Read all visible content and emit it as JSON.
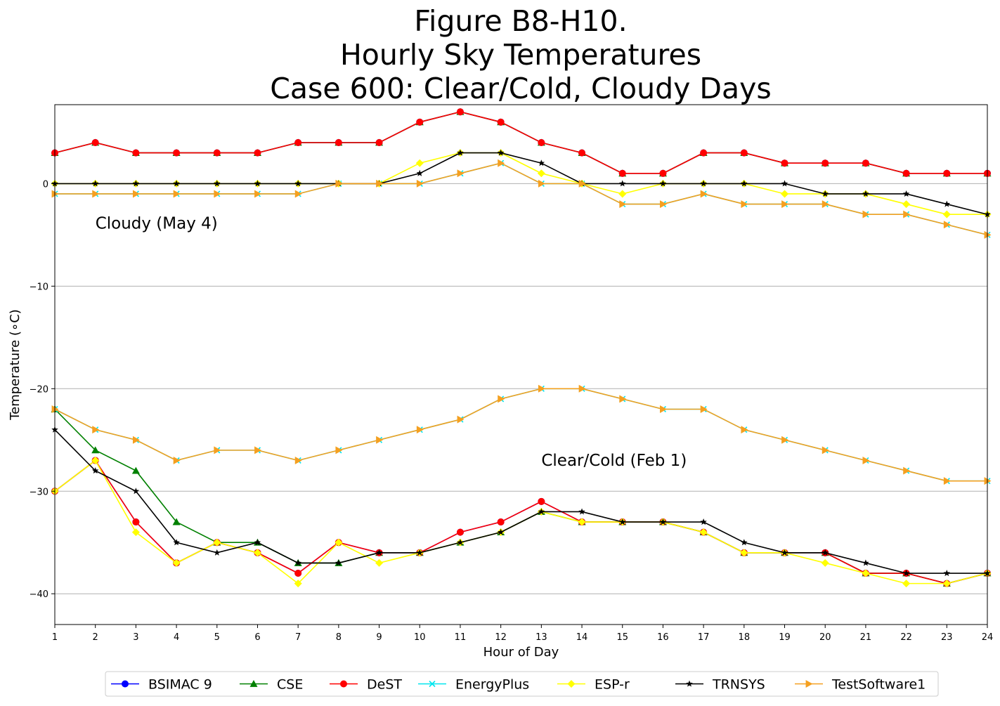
{
  "chart_data": {
    "type": "line",
    "title_lines": [
      "Figure B8-H10.",
      "Hourly Sky Temperatures",
      "Case 600: Clear/Cold, Cloudy Days"
    ],
    "xlabel": "Hour of Day",
    "ylabel": "Temperature (∘C)",
    "xlim": [
      1,
      24
    ],
    "ylim": [
      -43,
      7.7
    ],
    "x_ticks": [
      1,
      2,
      3,
      4,
      5,
      6,
      7,
      8,
      9,
      10,
      11,
      12,
      13,
      14,
      15,
      16,
      17,
      18,
      19,
      20,
      21,
      22,
      23,
      24
    ],
    "y_ticks": [
      0,
      -10,
      -20,
      -30,
      -40
    ],
    "y_tick_labels": [
      "0",
      "−10",
      "−20",
      "−30",
      "−40"
    ],
    "grid": "horizontal",
    "legend_position": "bottom-center",
    "annotations": [
      {
        "text": "Cloudy (May 4)",
        "x": 2,
        "y": -4.4
      },
      {
        "text": "Clear/Cold (Feb 1)",
        "x": 13,
        "y": -27.5
      }
    ],
    "x": [
      1,
      2,
      3,
      4,
      5,
      6,
      7,
      8,
      9,
      10,
      11,
      12,
      13,
      14,
      15,
      16,
      17,
      18,
      19,
      20,
      21,
      22,
      23,
      24
    ],
    "series": [
      {
        "name": "BSIMAC 9",
        "color": "#0000ff",
        "marker": "circle",
        "cloudy": [
          3,
          4,
          3,
          3,
          3,
          3,
          4,
          4,
          4,
          6,
          7,
          6,
          4,
          3,
          1,
          1,
          3,
          3,
          2,
          2,
          2,
          1,
          1,
          1
        ],
        "clear": [
          -30,
          -27,
          -33,
          -37,
          -35,
          -36,
          -38,
          -35,
          -36,
          -36,
          -34,
          -33,
          -31,
          -33,
          -33,
          -33,
          -34,
          -36,
          -36,
          -36,
          -38,
          -38,
          -39,
          -38
        ]
      },
      {
        "name": "CSE",
        "color": "#008000",
        "marker": "triangle-up",
        "cloudy": [
          3,
          4,
          3,
          3,
          3,
          3,
          4,
          4,
          4,
          6,
          7,
          6,
          4,
          3,
          1,
          1,
          3,
          3,
          2,
          2,
          2,
          1,
          1,
          1
        ],
        "clear": [
          -22,
          -26,
          -28,
          -33,
          -35,
          -35,
          -37,
          -37,
          -36,
          -36,
          -35,
          -34,
          -32,
          -33,
          -33,
          -33,
          -34,
          -36,
          -36,
          -36,
          -38,
          -38,
          -39,
          -38
        ]
      },
      {
        "name": "DeST",
        "color": "#ff0000",
        "marker": "circle",
        "cloudy": [
          3,
          4,
          3,
          3,
          3,
          3,
          4,
          4,
          4,
          6,
          7,
          6,
          4,
          3,
          1,
          1,
          3,
          3,
          2,
          2,
          2,
          1,
          1,
          1
        ],
        "clear": [
          -30,
          -27,
          -33,
          -37,
          -35,
          -36,
          -38,
          -35,
          -36,
          -36,
          -34,
          -33,
          -31,
          -33,
          -33,
          -33,
          -34,
          -36,
          -36,
          -36,
          -38,
          -38,
          -39,
          -38
        ]
      },
      {
        "name": "EnergyPlus",
        "color": "#00e5ee",
        "marker": "x",
        "cloudy": [
          -1,
          -1,
          -1,
          -1,
          -1,
          -1,
          -1,
          0,
          0,
          0,
          1,
          2,
          0,
          0,
          -2,
          -2,
          -1,
          -2,
          -2,
          -2,
          -3,
          -3,
          -4,
          -5
        ],
        "clear": [
          -22,
          -24,
          -25,
          -27,
          -26,
          -26,
          -27,
          -26,
          -25,
          -24,
          -23,
          -21,
          -20,
          -20,
          -21,
          -22,
          -22,
          -24,
          -25,
          -26,
          -27,
          -28,
          -29,
          -29
        ]
      },
      {
        "name": "ESP-r",
        "color": "#ffff00",
        "marker": "diamond",
        "cloudy": [
          0,
          0,
          0,
          0,
          0,
          0,
          0,
          0,
          0,
          2,
          3,
          3,
          1,
          0,
          -1,
          0,
          0,
          0,
          -1,
          -1,
          -1,
          -2,
          -3,
          -3
        ],
        "clear": [
          -30,
          -27,
          -34,
          -37,
          -35,
          -36,
          -39,
          -35,
          -37,
          -36,
          -35,
          -34,
          -32,
          -33,
          -33,
          -33,
          -34,
          -36,
          -36,
          -37,
          -38,
          -39,
          -39,
          -38
        ]
      },
      {
        "name": "TRNSYS",
        "color": "#000000",
        "marker": "star",
        "cloudy": [
          0,
          0,
          0,
          0,
          0,
          0,
          0,
          0,
          0,
          1,
          3,
          3,
          2,
          0,
          0,
          0,
          0,
          0,
          0,
          -1,
          -1,
          -1,
          -2,
          -3
        ],
        "clear": [
          -24,
          -28,
          -30,
          -35,
          -36,
          -35,
          -37,
          -37,
          -36,
          -36,
          -35,
          -34,
          -32,
          -32,
          -33,
          -33,
          -33,
          -35,
          -36,
          -36,
          -37,
          -38,
          -38,
          -38
        ]
      },
      {
        "name": "TestSoftware1",
        "color": "#f5a020",
        "marker": "triangle-right",
        "cloudy": [
          -1,
          -1,
          -1,
          -1,
          -1,
          -1,
          -1,
          0,
          0,
          0,
          1,
          2,
          0,
          0,
          -2,
          -2,
          -1,
          -2,
          -2,
          -2,
          -3,
          -3,
          -4,
          -5
        ],
        "clear": [
          -22,
          -24,
          -25,
          -27,
          -26,
          -26,
          -27,
          -26,
          -25,
          -24,
          -23,
          -21,
          -20,
          -20,
          -21,
          -22,
          -22,
          -24,
          -25,
          -26,
          -27,
          -28,
          -29,
          -29
        ]
      }
    ]
  }
}
